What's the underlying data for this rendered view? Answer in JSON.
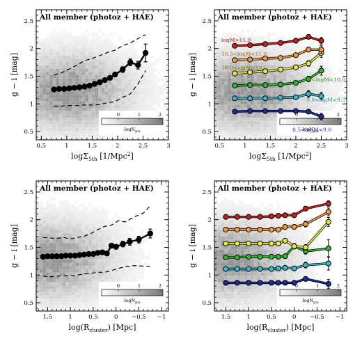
{
  "figure": {
    "panel_title": "All member (photoz + HAE)",
    "ylabel": "g − i  [mag]",
    "colorbar_label": "logN",
    "colorbar_label_sub": "pix",
    "colorbar_ticks": [
      "0",
      "1",
      "2"
    ]
  },
  "colors": {
    "mass_bins": [
      "#1f2a9a",
      "#38b8c8",
      "#2fb52f",
      "#e8e83a",
      "#f39a3a",
      "#c0221c"
    ],
    "label_colors": [
      "#1f2a9a",
      "#2a8fa0",
      "#2e8a1e",
      "#7a7a10",
      "#c46a1a",
      "#b01a14"
    ]
  },
  "chart_data": [
    {
      "type": "scatter",
      "title": "All member (photoz + HAE)",
      "xlabel": "logΣ5th [1/Mpc²]",
      "xlabel_parts": [
        "log",
        "Σ",
        "5th",
        " [1/Mpc",
        "2",
        "]"
      ],
      "ylabel": "g − i [mag]",
      "xlim": [
        0.4,
        3.0
      ],
      "ylim": [
        0.35,
        2.7
      ],
      "xticks": [
        0.5,
        1,
        1.5,
        2,
        2.5,
        3
      ],
      "xticklabels": [
        "0.5",
        "1",
        "1.5",
        "2",
        "2.5",
        "3"
      ],
      "yticks": [
        0.5,
        1,
        1.5,
        2,
        2.5
      ],
      "yticklabels": [
        "0.5",
        "1",
        "1.5",
        "2",
        "2.5"
      ],
      "background_density": {
        "type": "heatmap",
        "center": [
          1.0,
          1.25
        ]
      },
      "series": [
        {
          "kind": "median",
          "x": [
            0.75,
            0.85,
            0.95,
            1.05,
            1.15,
            1.25,
            1.35,
            1.45,
            1.55,
            1.65,
            1.75,
            1.85,
            1.95,
            2.1,
            2.25,
            2.4,
            2.55
          ],
          "y": [
            1.26,
            1.27,
            1.27,
            1.28,
            1.29,
            1.3,
            1.31,
            1.33,
            1.36,
            1.39,
            1.43,
            1.47,
            1.53,
            1.62,
            1.75,
            1.7,
            1.92
          ],
          "yerr": [
            0.02,
            0.02,
            0.02,
            0.02,
            0.02,
            0.02,
            0.02,
            0.02,
            0.02,
            0.02,
            0.03,
            0.03,
            0.04,
            0.05,
            0.06,
            0.07,
            0.16
          ]
        },
        {
          "kind": "upper",
          "x": [
            0.75,
            0.9,
            1.05,
            1.2,
            1.35,
            1.5,
            1.65,
            1.8,
            1.95,
            2.1,
            2.25,
            2.4,
            2.55
          ],
          "y": [
            1.52,
            1.56,
            1.63,
            1.7,
            1.78,
            1.82,
            1.87,
            1.93,
            1.97,
            2.05,
            2.1,
            2.18,
            2.25
          ]
        },
        {
          "kind": "lower",
          "x": [
            0.75,
            0.9,
            1.05,
            1.2,
            1.35,
            1.5,
            1.65,
            1.8,
            1.95,
            2.1,
            2.25,
            2.4,
            2.55
          ],
          "y": [
            0.96,
            0.96,
            0.97,
            0.97,
            0.98,
            0.98,
            0.99,
            1.02,
            1.04,
            1.12,
            1.18,
            1.36,
            1.6
          ]
        }
      ]
    },
    {
      "type": "line",
      "title": "All member (photoz + HAE)",
      "xlabel": "logΣ5th [1/Mpc²]",
      "xlabel_parts": [
        "log",
        "Σ",
        "5th",
        " [1/Mpc",
        "2",
        "]"
      ],
      "ylabel": "g − i [mag]",
      "xlim": [
        0.4,
        3.0
      ],
      "ylim": [
        0.35,
        2.7
      ],
      "xticks": [
        0.5,
        1,
        1.5,
        2,
        2.5,
        3
      ],
      "xticklabels": [
        "0.5",
        "1",
        "1.5",
        "2",
        "2.5",
        "3"
      ],
      "yticks": [
        0.5,
        1,
        1.5,
        2,
        2.5
      ],
      "yticklabels": [
        "0.5",
        "1",
        "1.5",
        "2",
        "2.5"
      ],
      "background_density": {
        "type": "heatmap",
        "center": [
          1.0,
          1.25
        ]
      },
      "x": [
        0.8,
        1.1,
        1.4,
        1.7,
        2.0,
        2.25,
        2.5
      ],
      "series": [
        {
          "name": "8.5<logM<9.0",
          "y": [
            0.86,
            0.87,
            0.87,
            0.87,
            0.87,
            0.86,
            0.77
          ],
          "yerr": [
            0.01,
            0.01,
            0.01,
            0.01,
            0.01,
            0.02,
            0.06
          ]
        },
        {
          "name": "9.0<logM<9.5",
          "y": [
            1.1,
            1.1,
            1.1,
            1.11,
            1.12,
            1.18,
            1.14
          ],
          "yerr": [
            0.01,
            0.01,
            0.01,
            0.01,
            0.02,
            0.06,
            0.07
          ]
        },
        {
          "name": "9.5<logM<10.0",
          "y": [
            1.33,
            1.34,
            1.34,
            1.35,
            1.38,
            1.45,
            1.6
          ],
          "yerr": [
            0.01,
            0.01,
            0.01,
            0.02,
            0.03,
            0.05,
            0.08
          ]
        },
        {
          "name": "10.0<logM<10.5",
          "y": [
            1.55,
            1.57,
            1.59,
            1.62,
            1.66,
            1.73,
            1.92
          ],
          "yerr": [
            0.01,
            0.01,
            0.01,
            0.02,
            0.03,
            0.05,
            0.08
          ]
        },
        {
          "name": "10.5<logM<11.0",
          "y": [
            1.79,
            1.8,
            1.82,
            1.83,
            1.88,
            1.98,
            1.98
          ],
          "yerr": [
            0.01,
            0.01,
            0.01,
            0.02,
            0.03,
            0.04,
            0.07
          ]
        },
        {
          "name": "logM>11.0",
          "y": [
            2.05,
            2.06,
            2.08,
            2.1,
            2.14,
            2.21,
            2.14
          ],
          "yerr": [
            0.02,
            0.02,
            0.02,
            0.02,
            0.03,
            0.03,
            0.06
          ]
        }
      ]
    },
    {
      "type": "scatter",
      "title": "All member (photoz + HAE)",
      "xlabel": "log(Rcluster) [Mpc]",
      "xlabel_parts": [
        "log(R",
        "cluster",
        ") [Mpc]"
      ],
      "ylabel": "g − i [mag]",
      "xlim": [
        1.75,
        -1.15
      ],
      "ylim": [
        0.35,
        2.7
      ],
      "xticks": [
        1.5,
        1,
        0.5,
        0,
        -0.5,
        -1
      ],
      "xticklabels": [
        "1.5",
        "1",
        "0.5",
        "0",
        "−0.5",
        "−1"
      ],
      "yticks": [
        0.5,
        1,
        1.5,
        2,
        2.5
      ],
      "yticklabels": [
        "0.5",
        "1",
        "1.5",
        "2",
        "2.5"
      ],
      "background_density": {
        "type": "heatmap",
        "center": [
          1.5,
          1.3
        ]
      },
      "series": [
        {
          "kind": "median",
          "x": [
            1.6,
            1.5,
            1.4,
            1.3,
            1.2,
            1.1,
            1.0,
            0.9,
            0.8,
            0.7,
            0.6,
            0.5,
            0.4,
            0.3,
            0.2,
            0.1,
            0.0,
            -0.15,
            -0.3,
            -0.5,
            -0.75
          ],
          "y": [
            1.33,
            1.34,
            1.34,
            1.34,
            1.34,
            1.35,
            1.35,
            1.35,
            1.36,
            1.37,
            1.38,
            1.38,
            1.4,
            1.41,
            1.39,
            1.53,
            1.51,
            1.56,
            1.6,
            1.64,
            1.75
          ],
          "yerr": [
            0.01,
            0.01,
            0.01,
            0.01,
            0.01,
            0.01,
            0.01,
            0.01,
            0.01,
            0.01,
            0.01,
            0.02,
            0.02,
            0.02,
            0.03,
            0.04,
            0.04,
            0.05,
            0.06,
            0.06,
            0.08
          ]
        },
        {
          "kind": "upper",
          "x": [
            1.6,
            1.45,
            1.3,
            1.15,
            1.0,
            0.85,
            0.7,
            0.55,
            0.4,
            0.25,
            0.1,
            -0.05,
            -0.2,
            -0.4,
            -0.6,
            -0.75
          ],
          "y": [
            1.68,
            1.67,
            1.66,
            1.68,
            1.65,
            1.68,
            1.7,
            1.75,
            1.82,
            1.88,
            1.9,
            1.98,
            1.96,
            2.05,
            2.12,
            2.25
          ]
        },
        {
          "kind": "lower",
          "x": [
            1.6,
            1.45,
            1.3,
            1.15,
            1.0,
            0.85,
            0.7,
            0.55,
            0.4,
            0.25,
            0.1,
            -0.05,
            -0.2,
            -0.4,
            -0.6,
            -0.75
          ],
          "y": [
            0.98,
            0.97,
            0.98,
            0.99,
            0.99,
            1.0,
            1.02,
            1.03,
            1.05,
            1.05,
            1.08,
            1.12,
            1.15,
            1.17,
            1.16,
            1.15
          ]
        }
      ]
    },
    {
      "type": "line",
      "title": "All member (photoz + HAE)",
      "xlabel": "log(Rcluster) [Mpc]",
      "xlabel_parts": [
        "log(R",
        "cluster",
        ") [Mpc]"
      ],
      "ylabel": "g − i [mag]",
      "xlim": [
        1.75,
        -1.15
      ],
      "ylim": [
        0.35,
        2.7
      ],
      "xticks": [
        1.5,
        1,
        0.5,
        0,
        -0.5,
        -1
      ],
      "xticklabels": [
        "1.5",
        "1",
        "0.5",
        "0",
        "−0.5",
        "−1"
      ],
      "yticks": [
        0.5,
        1,
        1.5,
        2,
        2.5
      ],
      "yticklabels": [
        "0.5",
        "1",
        "1.5",
        "2",
        "2.5"
      ],
      "background_density": {
        "type": "heatmap",
        "center": [
          1.5,
          1.3
        ]
      },
      "x": [
        1.5,
        1.25,
        1.0,
        0.75,
        0.5,
        0.35,
        0.2,
        0.0,
        -0.25,
        -0.75
      ],
      "series": [
        {
          "name": "8.5<logM<9.0",
          "y": [
            0.86,
            0.86,
            0.86,
            0.86,
            0.86,
            0.86,
            0.86,
            0.86,
            0.93,
            0.84
          ],
          "yerr": [
            0.01,
            0.01,
            0.01,
            0.01,
            0.01,
            0.01,
            0.01,
            0.02,
            0.03,
            0.08
          ]
        },
        {
          "name": "9.0<logM<9.5",
          "y": [
            1.11,
            1.11,
            1.11,
            1.11,
            1.11,
            1.12,
            1.13,
            1.12,
            1.18,
            1.21
          ],
          "yerr": [
            0.01,
            0.01,
            0.01,
            0.01,
            0.01,
            0.02,
            0.02,
            0.03,
            0.05,
            0.12
          ]
        },
        {
          "name": "9.5<logM<10.0",
          "y": [
            1.32,
            1.32,
            1.33,
            1.33,
            1.33,
            1.33,
            1.34,
            1.52,
            1.43,
            1.48
          ],
          "yerr": [
            0.01,
            0.01,
            0.01,
            0.01,
            0.01,
            0.02,
            0.03,
            0.04,
            0.05,
            0.16
          ]
        },
        {
          "name": "10.0<logM<10.5",
          "y": [
            1.57,
            1.57,
            1.57,
            1.57,
            1.57,
            1.57,
            1.62,
            1.52,
            1.5,
            1.96
          ],
          "yerr": [
            0.01,
            0.01,
            0.01,
            0.01,
            0.01,
            0.02,
            0.03,
            0.05,
            0.05,
            0.08
          ]
        },
        {
          "name": "10.5<logM<11.0",
          "y": [
            1.82,
            1.82,
            1.82,
            1.82,
            1.82,
            1.82,
            1.87,
            1.87,
            1.92,
            2.14
          ],
          "yerr": [
            0.01,
            0.01,
            0.01,
            0.01,
            0.01,
            0.02,
            0.03,
            0.04,
            0.05,
            0.07
          ]
        },
        {
          "name": "logM>11.0",
          "y": [
            2.05,
            2.05,
            2.05,
            2.05,
            2.06,
            2.07,
            2.08,
            2.08,
            2.2,
            2.29
          ],
          "yerr": [
            0.01,
            0.01,
            0.01,
            0.01,
            0.02,
            0.02,
            0.03,
            0.03,
            0.04,
            0.05
          ]
        }
      ]
    }
  ]
}
